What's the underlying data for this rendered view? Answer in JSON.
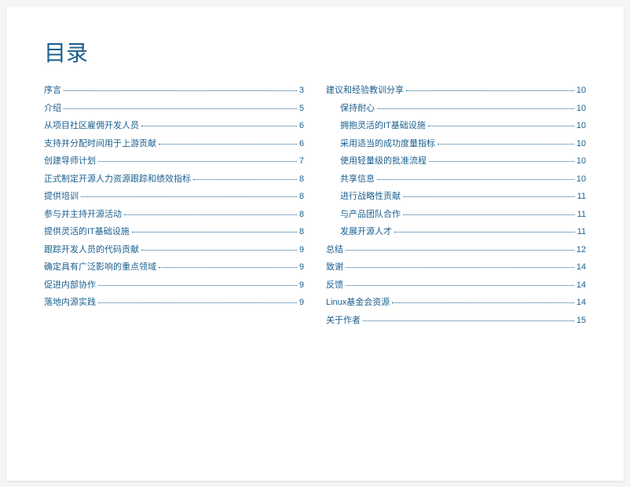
{
  "title": "目录",
  "colors": {
    "primary": "#1a5f8e",
    "background": "#ffffff",
    "page_bg": "#f5f5f5"
  },
  "typography": {
    "title_fontsize": 28,
    "entry_fontsize": 11
  },
  "leftColumn": [
    {
      "label": "序言",
      "page": "3",
      "indent": 0
    },
    {
      "label": "介绍",
      "page": "5",
      "indent": 0
    },
    {
      "label": "从项目社区雇佣开发人员",
      "page": "6",
      "indent": 0
    },
    {
      "label": "支持并分配时间用于上游贡献",
      "page": "6",
      "indent": 0
    },
    {
      "label": "创建导师计划",
      "page": "7",
      "indent": 0
    },
    {
      "label": "正式制定开源人力资源跟踪和绩效指标",
      "page": "8",
      "indent": 0
    },
    {
      "label": "提供培训",
      "page": "8",
      "indent": 0
    },
    {
      "label": "参与并主持开源活动",
      "page": "8",
      "indent": 0
    },
    {
      "label": "提供灵活的IT基础设施",
      "page": "8",
      "indent": 0
    },
    {
      "label": "跟踪开发人员的代码贡献",
      "page": "9",
      "indent": 0
    },
    {
      "label": "确定具有广泛影响的重点领域",
      "page": "9",
      "indent": 0
    },
    {
      "label": "促进内部协作",
      "page": "9",
      "indent": 0
    },
    {
      "label": "落地内源实践",
      "page": "9",
      "indent": 0
    }
  ],
  "rightColumn": [
    {
      "label": "建议和经验教训分享",
      "page": "10",
      "indent": 0
    },
    {
      "label": "保持耐心",
      "page": "10",
      "indent": 1
    },
    {
      "label": "拥抱灵活的IT基础设施",
      "page": "10",
      "indent": 1
    },
    {
      "label": "采用适当的成功度量指标",
      "page": "10",
      "indent": 1
    },
    {
      "label": "使用轻量级的批准流程",
      "page": "10",
      "indent": 1
    },
    {
      "label": "共享信息",
      "page": "10",
      "indent": 1
    },
    {
      "label": "进行战略性贡献",
      "page": "11",
      "indent": 1
    },
    {
      "label": "与产品团队合作",
      "page": "11",
      "indent": 1
    },
    {
      "label": "发展开源人才",
      "page": "11",
      "indent": 1
    },
    {
      "label": "总结",
      "page": "12",
      "indent": 0
    },
    {
      "label": "致谢",
      "page": "14",
      "indent": 0
    },
    {
      "label": "反馈",
      "page": "14",
      "indent": 0
    },
    {
      "label": "Linux基金会资源",
      "page": "14",
      "indent": 0
    },
    {
      "label": "关于作者",
      "page": "15",
      "indent": 0
    }
  ]
}
